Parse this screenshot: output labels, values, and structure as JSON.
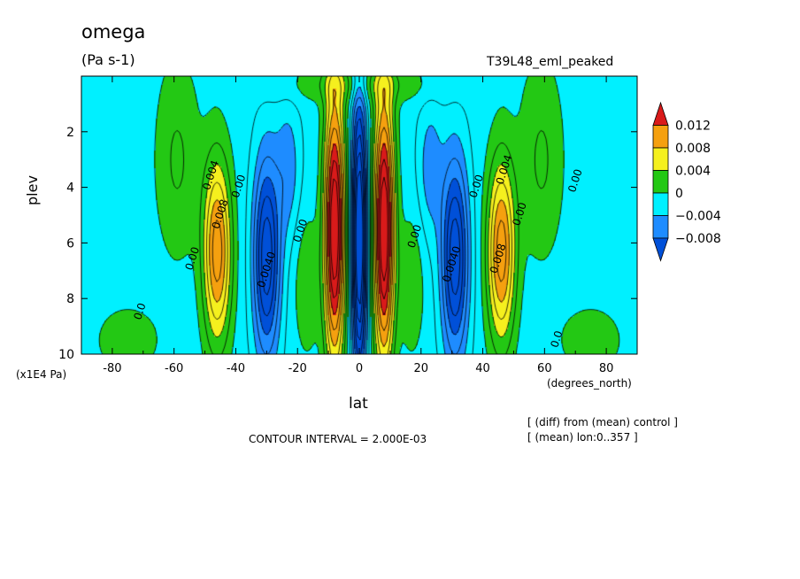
{
  "chart_data": {
    "type": "heatmap",
    "variable": "omega",
    "title": "omega",
    "units": "(Pa s-1)",
    "run_label": "T39L48_eml_peaked",
    "xlabel": "lat",
    "x_units": "(degrees_north)",
    "ylabel": "plev",
    "y_scale_label": "(x1E4 Pa)",
    "xlim": [
      -90,
      90
    ],
    "ylim": [
      10,
      0
    ],
    "x_ticks": [
      -80,
      -60,
      -40,
      -20,
      0,
      20,
      40,
      60,
      80
    ],
    "y_ticks": [
      2,
      4,
      6,
      8,
      10
    ],
    "contour_interval_text": "CONTOUR INTERVAL = 2.000E-03",
    "notes": [
      "[ (diff) from (mean) control ]",
      "[ (mean) lon:0..357 ]"
    ],
    "colorbar": {
      "labels": [
        "0.012",
        "0.008",
        "0.004",
        "0",
        "−0.004",
        "−0.008"
      ],
      "colors": [
        "#d91a1a",
        "#f5a00f",
        "#f5f01e",
        "#23c814",
        "#00f0ff",
        "#1e8cff",
        "#0050d8"
      ]
    },
    "fill_colors": {
      "above_0.012": "#d91a1a",
      "0.008_to_0.012": "#f5a00f",
      "0.004_to_0.008": "#f5f01e",
      "0_to_0.004": "#23c814",
      "-0.004_to_0": "#00f0ff",
      "-0.008_to_-0.004": "#1e8cff",
      "below_-0.008": "#0050d8"
    },
    "field_centers": [
      {
        "lat": -46,
        "plev": 6.3,
        "value": 0.0105
      },
      {
        "lat": 46,
        "plev": 6.3,
        "value": 0.0105
      },
      {
        "lat": -30,
        "plev": 6.5,
        "value": -0.0105
      },
      {
        "lat": 31,
        "plev": 6.5,
        "value": -0.0105
      },
      {
        "lat": -8,
        "plev": 5.5,
        "value": 0.016
      },
      {
        "lat": 8,
        "plev": 5.5,
        "value": 0.016
      },
      {
        "lat": 0,
        "plev": 5.8,
        "value": -0.012
      },
      {
        "lat": -23,
        "plev": 3.2,
        "value": -0.0055
      },
      {
        "lat": 23,
        "plev": 3.2,
        "value": -0.0055
      }
    ],
    "contour_labels": [
      {
        "lat": -47,
        "plev": 3.6,
        "text": "0.004"
      },
      {
        "lat": -44,
        "plev": 5.0,
        "text": "0.008"
      },
      {
        "lat": -53,
        "plev": 6.6,
        "text": "0.00"
      },
      {
        "lat": -38,
        "plev": 4.0,
        "text": "0.00"
      },
      {
        "lat": -29,
        "plev": 7.0,
        "text": "0.0040"
      },
      {
        "lat": -18,
        "plev": 5.6,
        "text": "0.00"
      },
      {
        "lat": -70,
        "plev": 8.5,
        "text": "0.0"
      },
      {
        "lat": 19,
        "plev": 5.8,
        "text": "0.00"
      },
      {
        "lat": 31,
        "plev": 6.8,
        "text": "0.0040"
      },
      {
        "lat": 39,
        "plev": 4.0,
        "text": "0.00"
      },
      {
        "lat": 48,
        "plev": 3.4,
        "text": "0.004"
      },
      {
        "lat": 46,
        "plev": 6.6,
        "text": "0.008"
      },
      {
        "lat": 53,
        "plev": 5.0,
        "text": "0.00"
      },
      {
        "lat": 71,
        "plev": 3.8,
        "text": "0.00"
      },
      {
        "lat": 65,
        "plev": 9.5,
        "text": "0.0"
      }
    ]
  }
}
